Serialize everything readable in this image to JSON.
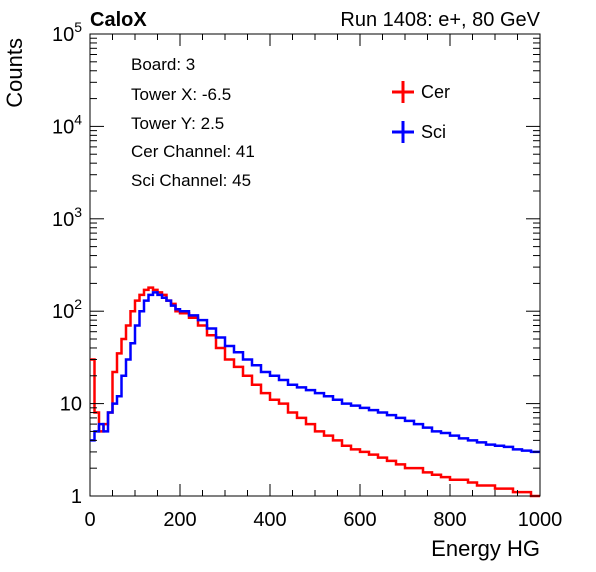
{
  "chart_data": {
    "type": "line",
    "brand": "CaloX",
    "run_label": "Run 1408: e+, 80 GeV",
    "xlabel": "Energy HG",
    "ylabel": "Counts",
    "xlim": [
      0,
      1000
    ],
    "ylim": [
      1,
      100000
    ],
    "y_scale": "log",
    "x_ticks": [
      0,
      200,
      400,
      600,
      800,
      1000
    ],
    "x_tick_labels": [
      "0",
      "200",
      "400",
      "600",
      "800",
      "1000"
    ],
    "y_ticks": [
      1,
      10,
      100,
      1000,
      10000,
      100000
    ],
    "y_tick_labels": [
      {
        "base": "1",
        "exp": ""
      },
      {
        "base": "10",
        "exp": ""
      },
      {
        "base": "10",
        "exp": "2"
      },
      {
        "base": "10",
        "exp": "3"
      },
      {
        "base": "10",
        "exp": "4"
      },
      {
        "base": "10",
        "exp": "5"
      }
    ],
    "info_lines": [
      "Board: 3",
      "Tower X: -6.5",
      "Tower Y: 2.5",
      "Cer Channel: 41",
      "Sci Channel: 45"
    ],
    "legend_position": "top-right",
    "series": [
      {
        "name": "Cer",
        "color": "#ff0000",
        "x": [
          0,
          10,
          20,
          30,
          40,
          50,
          60,
          70,
          80,
          90,
          100,
          110,
          120,
          130,
          140,
          150,
          160,
          170,
          180,
          190,
          200,
          220,
          240,
          260,
          280,
          300,
          320,
          340,
          360,
          380,
          400,
          420,
          440,
          460,
          480,
          500,
          520,
          540,
          560,
          580,
          600,
          620,
          640,
          660,
          680,
          700,
          720,
          740,
          760,
          780,
          800,
          820,
          840,
          860,
          880,
          900,
          920,
          940,
          960,
          980,
          1000
        ],
        "y": [
          30,
          8,
          5,
          6,
          8,
          22,
          35,
          50,
          70,
          100,
          130,
          150,
          170,
          180,
          170,
          160,
          150,
          130,
          120,
          100,
          95,
          85,
          70,
          55,
          40,
          30,
          25,
          20,
          16,
          13,
          11,
          10,
          8,
          7,
          6,
          5,
          4.5,
          4,
          3.5,
          3.2,
          3,
          2.8,
          2.6,
          2.4,
          2.2,
          2,
          2,
          1.8,
          1.7,
          1.6,
          1.5,
          1.5,
          1.4,
          1.3,
          1.3,
          1.2,
          1.2,
          1.1,
          1.1,
          1,
          1
        ]
      },
      {
        "name": "Sci",
        "color": "#0000ff",
        "x": [
          0,
          10,
          20,
          30,
          40,
          50,
          60,
          70,
          80,
          90,
          100,
          110,
          120,
          130,
          140,
          150,
          160,
          170,
          180,
          190,
          200,
          220,
          240,
          260,
          280,
          300,
          320,
          340,
          360,
          380,
          400,
          420,
          440,
          460,
          480,
          500,
          520,
          540,
          560,
          580,
          600,
          620,
          640,
          660,
          680,
          700,
          720,
          740,
          760,
          780,
          800,
          820,
          840,
          860,
          880,
          900,
          920,
          940,
          960,
          980,
          1000
        ],
        "y": [
          4,
          5,
          6,
          5,
          8,
          10,
          12,
          20,
          30,
          45,
          70,
          100,
          130,
          150,
          160,
          150,
          140,
          130,
          115,
          105,
          100,
          90,
          80,
          65,
          52,
          42,
          36,
          30,
          26,
          22,
          20,
          18,
          16,
          15,
          14,
          13,
          12,
          11,
          10,
          9.5,
          9,
          8.5,
          8,
          7.5,
          7,
          6.5,
          6,
          5.5,
          5,
          4.8,
          4.5,
          4.2,
          4,
          3.8,
          3.6,
          3.5,
          3.4,
          3.2,
          3.1,
          3,
          3
        ]
      }
    ]
  }
}
